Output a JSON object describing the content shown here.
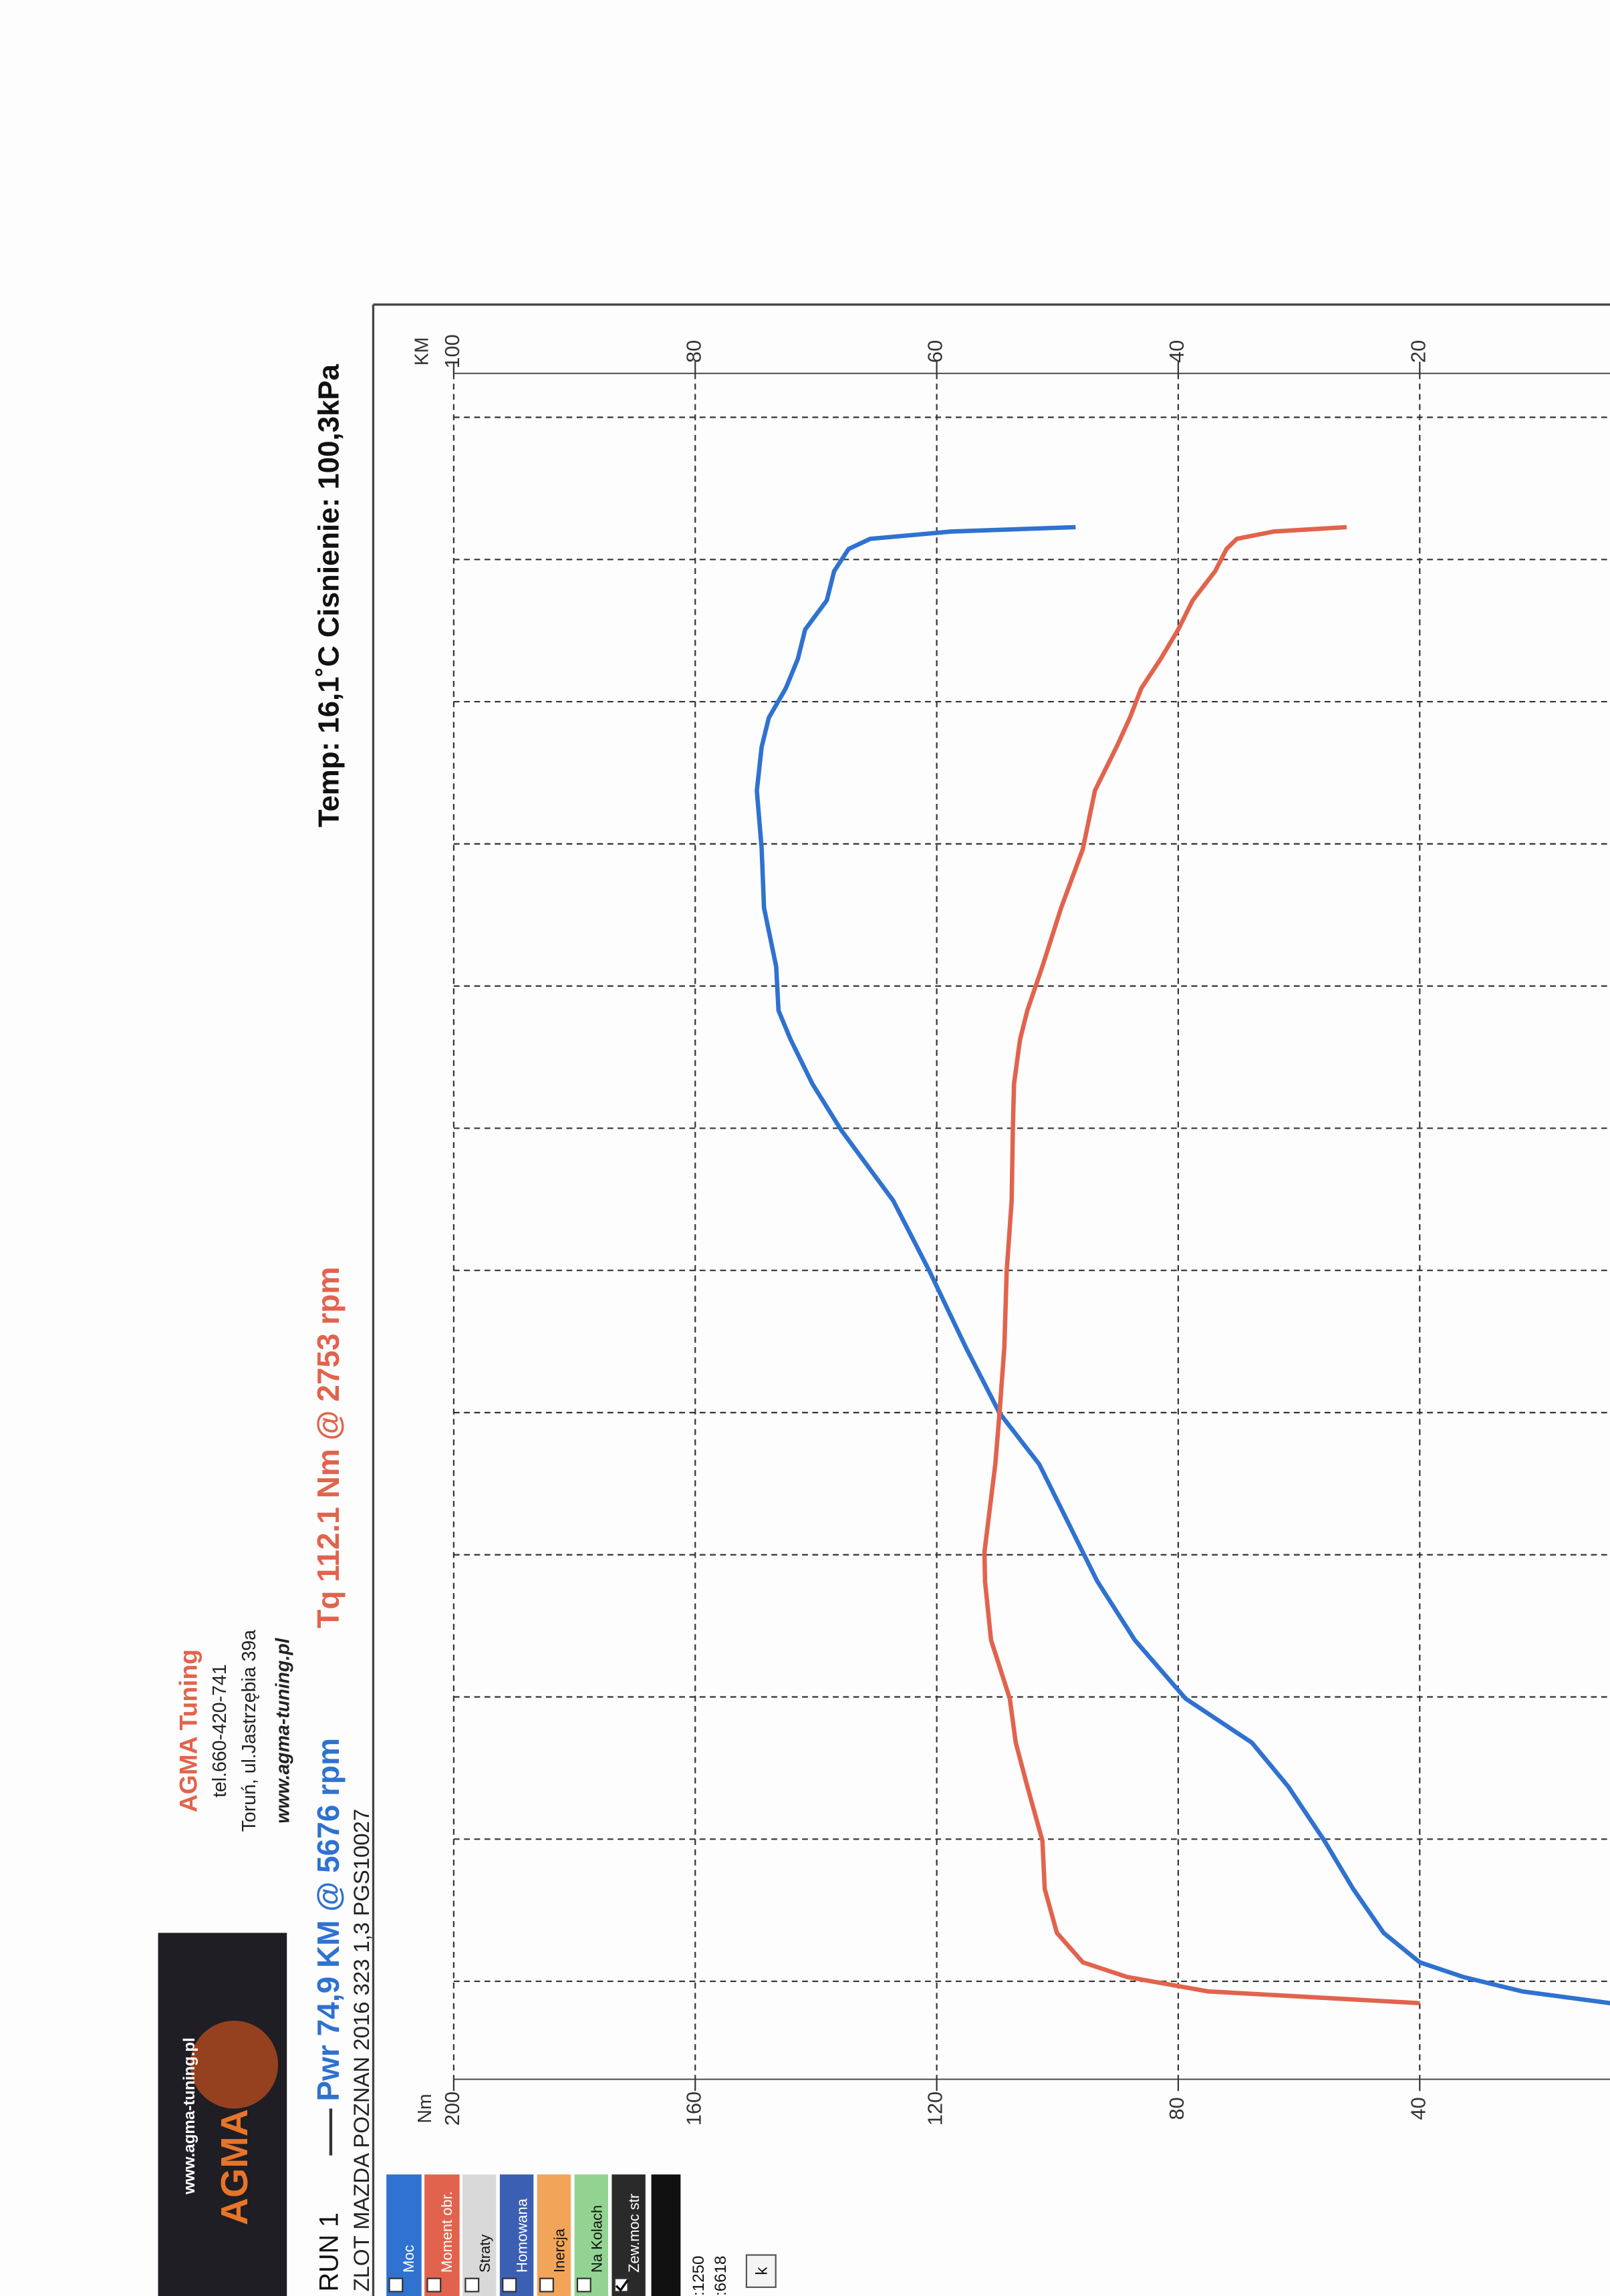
{
  "header": {
    "logo_url": "www.agma-tuning.pl",
    "logo": "AGMA",
    "company": "AGMA Tuning",
    "phone": "tel.660-420-741",
    "address": "Toruń, ul.Jastrzębia 39a",
    "website": "www.agma-tuning.pl"
  },
  "panel": {
    "checkboxes": [
      {
        "label": "Straty",
        "color": "#d9d9d9",
        "checked": false
      },
      {
        "label": "Homowana",
        "color": "#3b5fb3",
        "checked": false
      },
      {
        "label": "Inercja",
        "color": "#f2a458",
        "checked": false
      },
      {
        "label": "Na Kolach",
        "color": "#92d392",
        "checked": false
      },
      {
        "label": "Zew.moc str",
        "color": "#2a2a2a",
        "checked": true
      }
    ],
    "readouts": [
      ":1250",
      ":6618"
    ],
    "button": "k"
  },
  "chart_data": {
    "type": "line",
    "run": "RUN 1",
    "subtitle": "ZLOT MAZDA POZNAN 2016 323 1,3 PGS10027",
    "annotations": [
      "Pwr 74,9 KM @ 5676 rpm",
      "Tq 112.1 Nm @ 2753 rpm",
      "Temp: 16,1˚C  Cisnienie: 100,3kPa"
    ],
    "ylabel": "Nm",
    "y2label": "KM",
    "xlim": [
      730,
      7277
    ],
    "ylim": [
      0,
      200
    ],
    "yticks": [
      40,
      80,
      120,
      160,
      200
    ],
    "y2lim": [
      0,
      100
    ],
    "y2ticks": [
      20,
      40,
      60,
      80,
      100
    ],
    "grid": true,
    "series": [
      {
        "name": "Moc",
        "color": "#2f72d0",
        "axis": "y2",
        "x": [
          1022,
          1067,
          1123,
          1179,
          1292,
          1460,
          1646,
          1854,
          2022,
          2191,
          2416,
          2641,
          2753,
          3090,
          3287,
          3540,
          3832,
          4102,
          4372,
          4551,
          4720,
          4832,
          5001,
          5226,
          5451,
          5676,
          5844,
          5956,
          6069,
          6181,
          6294,
          6406,
          6518,
          6603,
          6642,
          6670,
          6687
        ],
        "values": [
          4.2,
          11.5,
          16.4,
          20,
          23,
          25.5,
          27.9,
          30.9,
          33.9,
          39.4,
          43.6,
          46.7,
          47.9,
          51.5,
          54.8,
          57.6,
          60.6,
          63.6,
          67.9,
          70.3,
          72.1,
          73.1,
          73.3,
          74.3,
          74.5,
          74.9,
          74.5,
          73.9,
          72.5,
          71.5,
          70.9,
          69.1,
          68.5,
          67.3,
          65.5,
          58.8,
          48.5
        ]
      },
      {
        "name": "Moment obr.",
        "color": "#e2634d",
        "x": [
          1022,
          1067,
          1123,
          1179,
          1292,
          1460,
          1646,
          1854,
          2022,
          2191,
          2416,
          2641,
          2753,
          3090,
          3287,
          3540,
          3832,
          4102,
          4372,
          4551,
          4720,
          4832,
          5001,
          5226,
          5451,
          5676,
          5844,
          5956,
          6069,
          6181,
          6294,
          6406,
          6518,
          6603,
          6642,
          6670,
          6687
        ],
        "values": [
          40,
          75,
          88.5,
          95.8,
          100.1,
          102.1,
          102.5,
          105,
          106.9,
          107.9,
          111,
          112,
          112.1,
          110.3,
          109.6,
          108.8,
          108.4,
          107.6,
          107.4,
          107.2,
          106.2,
          105,
          102.5,
          99.4,
          95.8,
          93.8,
          90.2,
          88,
          86.1,
          82.9,
          80,
          77.6,
          73.9,
          72,
          70.3,
          64.2,
          52.1
        ]
      }
    ]
  }
}
